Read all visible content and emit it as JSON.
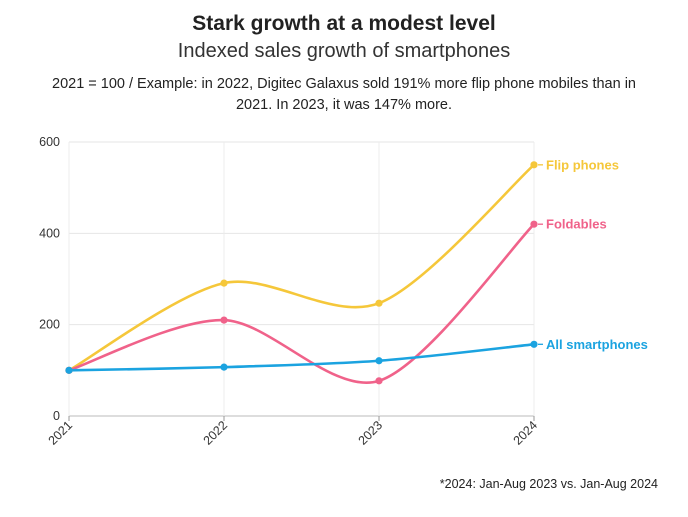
{
  "title": "Stark growth at a modest level",
  "subtitle": "Indexed sales growth of smartphones",
  "description": "2021 = 100 / Example: in 2022, Digitec Galaxus sold 191% more flip phone mobiles than in 2021. In 2023, it was 147% more.",
  "footnote": "*2024: Jan-Aug 2023 vs. Jan-Aug 2024",
  "chart_data": {
    "type": "line",
    "title": "Stark growth at a modest level",
    "subtitle": "Indexed sales growth of smartphones",
    "xlabel": "",
    "ylabel": "",
    "categories": [
      "2021",
      "2022",
      "2023",
      "2024"
    ],
    "ylim": [
      0,
      600
    ],
    "yticks": [
      0,
      200,
      400,
      600
    ],
    "grid": true,
    "legend": "direct labels at line ends (right)",
    "series": [
      {
        "name": "Flip phones",
        "color": "#f5c73a",
        "values": [
          100,
          291,
          247,
          550
        ]
      },
      {
        "name": "Foldables",
        "color": "#f0628a",
        "values": [
          100,
          210,
          77,
          420
        ]
      },
      {
        "name": "All smartphones",
        "color": "#1ba3e0",
        "values": [
          100,
          107,
          121,
          157
        ]
      }
    ]
  }
}
